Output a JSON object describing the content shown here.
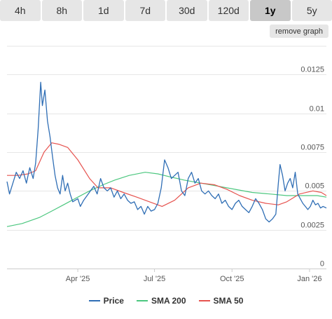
{
  "tabs": [
    {
      "label": "4h"
    },
    {
      "label": "8h"
    },
    {
      "label": "1d"
    },
    {
      "label": "7d"
    },
    {
      "label": "30d"
    },
    {
      "label": "120d"
    },
    {
      "label": "1y",
      "active": true
    },
    {
      "label": "5y"
    }
  ],
  "remove_label": "remove graph",
  "colors": {
    "price": "#2f6eb5",
    "sma200": "#4cc77f",
    "sma50": "#e6534f",
    "grid": "#e6e6e6",
    "axis": "#cccccc"
  },
  "chart_data": {
    "type": "line",
    "title": "",
    "xlabel": "",
    "ylabel": "",
    "ylim": [
      0,
      0.0145
    ],
    "xlim": [
      "2025-01-07",
      "2026-01-21"
    ],
    "y_ticks": [
      {
        "value": 0,
        "label": "0"
      },
      {
        "value": 0.0025,
        "label": "0.0025"
      },
      {
        "value": 0.005,
        "label": "0.005"
      },
      {
        "value": 0.0075,
        "label": "0.0075"
      },
      {
        "value": 0.01,
        "label": "0.01"
      },
      {
        "value": 0.0125,
        "label": "0.0125"
      }
    ],
    "x_ticks": [
      {
        "date": "2025-04-01",
        "label": "Apr '25"
      },
      {
        "date": "2025-07-01",
        "label": "Jul '25"
      },
      {
        "date": "2025-10-01",
        "label": "Oct '25"
      },
      {
        "date": "2026-01-01",
        "label": "Jan '26"
      }
    ],
    "legend_position": "bottom",
    "series": [
      {
        "name": "Price",
        "key": "price",
        "points": [
          [
            "2025-01-07",
            0.0056
          ],
          [
            "2025-01-10",
            0.0048
          ],
          [
            "2025-01-14",
            0.0055
          ],
          [
            "2025-01-18",
            0.0062
          ],
          [
            "2025-01-22",
            0.0058
          ],
          [
            "2025-01-26",
            0.0063
          ],
          [
            "2025-01-30",
            0.0055
          ],
          [
            "2025-02-03",
            0.0065
          ],
          [
            "2025-02-07",
            0.0058
          ],
          [
            "2025-02-10",
            0.0068
          ],
          [
            "2025-02-13",
            0.009
          ],
          [
            "2025-02-16",
            0.012
          ],
          [
            "2025-02-18",
            0.0105
          ],
          [
            "2025-02-21",
            0.0115
          ],
          [
            "2025-02-24",
            0.0095
          ],
          [
            "2025-02-27",
            0.0085
          ],
          [
            "2025-03-02",
            0.0072
          ],
          [
            "2025-03-05",
            0.006
          ],
          [
            "2025-03-08",
            0.0052
          ],
          [
            "2025-03-11",
            0.0048
          ],
          [
            "2025-03-14",
            0.006
          ],
          [
            "2025-03-17",
            0.005
          ],
          [
            "2025-03-20",
            0.0055
          ],
          [
            "2025-03-23",
            0.0048
          ],
          [
            "2025-03-26",
            0.0043
          ],
          [
            "2025-03-29",
            0.0044
          ],
          [
            "2025-04-01",
            0.0045
          ],
          [
            "2025-04-04",
            0.004
          ],
          [
            "2025-04-08",
            0.0044
          ],
          [
            "2025-04-12",
            0.0047
          ],
          [
            "2025-04-16",
            0.005
          ],
          [
            "2025-04-20",
            0.0053
          ],
          [
            "2025-04-24",
            0.0048
          ],
          [
            "2025-04-28",
            0.0058
          ],
          [
            "2025-05-02",
            0.0052
          ],
          [
            "2025-05-06",
            0.005
          ],
          [
            "2025-05-10",
            0.0052
          ],
          [
            "2025-05-14",
            0.0046
          ],
          [
            "2025-05-18",
            0.005
          ],
          [
            "2025-05-22",
            0.0045
          ],
          [
            "2025-05-26",
            0.0048
          ],
          [
            "2025-05-30",
            0.0044
          ],
          [
            "2025-06-03",
            0.0042
          ],
          [
            "2025-06-07",
            0.0043
          ],
          [
            "2025-06-11",
            0.0038
          ],
          [
            "2025-06-15",
            0.004
          ],
          [
            "2025-06-19",
            0.0035
          ],
          [
            "2025-06-23",
            0.004
          ],
          [
            "2025-06-27",
            0.0037
          ],
          [
            "2025-07-01",
            0.0038
          ],
          [
            "2025-07-05",
            0.0042
          ],
          [
            "2025-07-09",
            0.0052
          ],
          [
            "2025-07-13",
            0.007
          ],
          [
            "2025-07-17",
            0.0065
          ],
          [
            "2025-07-21",
            0.0058
          ],
          [
            "2025-07-25",
            0.006
          ],
          [
            "2025-07-29",
            0.0062
          ],
          [
            "2025-08-02",
            0.005
          ],
          [
            "2025-08-06",
            0.0047
          ],
          [
            "2025-08-10",
            0.0058
          ],
          [
            "2025-08-14",
            0.0062
          ],
          [
            "2025-08-18",
            0.0055
          ],
          [
            "2025-08-22",
            0.0058
          ],
          [
            "2025-08-26",
            0.005
          ],
          [
            "2025-08-30",
            0.0048
          ],
          [
            "2025-09-03",
            0.005
          ],
          [
            "2025-09-07",
            0.0047
          ],
          [
            "2025-09-11",
            0.0045
          ],
          [
            "2025-09-15",
            0.0048
          ],
          [
            "2025-09-19",
            0.0042
          ],
          [
            "2025-09-23",
            0.0044
          ],
          [
            "2025-09-27",
            0.004
          ],
          [
            "2025-10-01",
            0.0038
          ],
          [
            "2025-10-05",
            0.0042
          ],
          [
            "2025-10-09",
            0.0044
          ],
          [
            "2025-10-13",
            0.004
          ],
          [
            "2025-10-17",
            0.0038
          ],
          [
            "2025-10-21",
            0.0036
          ],
          [
            "2025-10-25",
            0.004
          ],
          [
            "2025-10-29",
            0.0045
          ],
          [
            "2025-11-02",
            0.0042
          ],
          [
            "2025-11-06",
            0.0038
          ],
          [
            "2025-11-10",
            0.0032
          ],
          [
            "2025-11-14",
            0.003
          ],
          [
            "2025-11-18",
            0.0032
          ],
          [
            "2025-11-22",
            0.0035
          ],
          [
            "2025-11-25",
            0.0055
          ],
          [
            "2025-11-27",
            0.0067
          ],
          [
            "2025-11-30",
            0.006
          ],
          [
            "2025-12-03",
            0.005
          ],
          [
            "2025-12-06",
            0.0055
          ],
          [
            "2025-12-09",
            0.0058
          ],
          [
            "2025-12-12",
            0.0052
          ],
          [
            "2025-12-15",
            0.0062
          ],
          [
            "2025-12-18",
            0.0048
          ],
          [
            "2025-12-21",
            0.0045
          ],
          [
            "2025-12-24",
            0.0042
          ],
          [
            "2025-12-27",
            0.004
          ],
          [
            "2025-12-30",
            0.0038
          ],
          [
            "2026-01-02",
            0.004
          ],
          [
            "2026-01-05",
            0.0044
          ],
          [
            "2026-01-08",
            0.0041
          ],
          [
            "2026-01-11",
            0.0042
          ],
          [
            "2026-01-14",
            0.0039
          ],
          [
            "2026-01-17",
            0.004
          ],
          [
            "2026-01-21",
            0.0039
          ]
        ]
      },
      {
        "name": "SMA 200",
        "key": "sma200",
        "points": [
          [
            "2025-01-07",
            0.0027
          ],
          [
            "2025-01-25",
            0.0029
          ],
          [
            "2025-02-15",
            0.0033
          ],
          [
            "2025-03-01",
            0.0037
          ],
          [
            "2025-03-15",
            0.0041
          ],
          [
            "2025-04-01",
            0.0046
          ],
          [
            "2025-04-15",
            0.005
          ],
          [
            "2025-05-01",
            0.0054
          ],
          [
            "2025-05-15",
            0.0057
          ],
          [
            "2025-06-01",
            0.006
          ],
          [
            "2025-06-20",
            0.0062
          ],
          [
            "2025-07-05",
            0.0061
          ],
          [
            "2025-07-20",
            0.0059
          ],
          [
            "2025-08-05",
            0.0057
          ],
          [
            "2025-08-25",
            0.0055
          ],
          [
            "2025-09-15",
            0.0053
          ],
          [
            "2025-10-05",
            0.0051
          ],
          [
            "2025-10-25",
            0.0049
          ],
          [
            "2025-11-15",
            0.0048
          ],
          [
            "2025-12-05",
            0.0047
          ],
          [
            "2025-12-25",
            0.0047
          ],
          [
            "2026-01-10",
            0.0047
          ],
          [
            "2026-01-21",
            0.0046
          ]
        ]
      },
      {
        "name": "SMA 50",
        "key": "sma50",
        "points": [
          [
            "2025-01-07",
            0.006
          ],
          [
            "2025-01-20",
            0.006
          ],
          [
            "2025-02-01",
            0.0061
          ],
          [
            "2025-02-10",
            0.0063
          ],
          [
            "2025-02-20",
            0.0075
          ],
          [
            "2025-03-01",
            0.0081
          ],
          [
            "2025-03-10",
            0.008
          ],
          [
            "2025-03-20",
            0.0078
          ],
          [
            "2025-04-01",
            0.007
          ],
          [
            "2025-04-15",
            0.0058
          ],
          [
            "2025-04-25",
            0.0052
          ],
          [
            "2025-05-10",
            0.0052
          ],
          [
            "2025-05-25",
            0.0049
          ],
          [
            "2025-06-10",
            0.0046
          ],
          [
            "2025-06-25",
            0.0043
          ],
          [
            "2025-07-10",
            0.004
          ],
          [
            "2025-07-25",
            0.0044
          ],
          [
            "2025-08-10",
            0.0052
          ],
          [
            "2025-08-25",
            0.0055
          ],
          [
            "2025-09-10",
            0.0054
          ],
          [
            "2025-09-25",
            0.0051
          ],
          [
            "2025-10-10",
            0.0047
          ],
          [
            "2025-10-25",
            0.0044
          ],
          [
            "2025-11-10",
            0.0042
          ],
          [
            "2025-11-25",
            0.0041
          ],
          [
            "2025-12-05",
            0.0043
          ],
          [
            "2025-12-20",
            0.0048
          ],
          [
            "2026-01-05",
            0.005
          ],
          [
            "2026-01-15",
            0.0049
          ],
          [
            "2026-01-21",
            0.0047
          ]
        ]
      }
    ]
  }
}
